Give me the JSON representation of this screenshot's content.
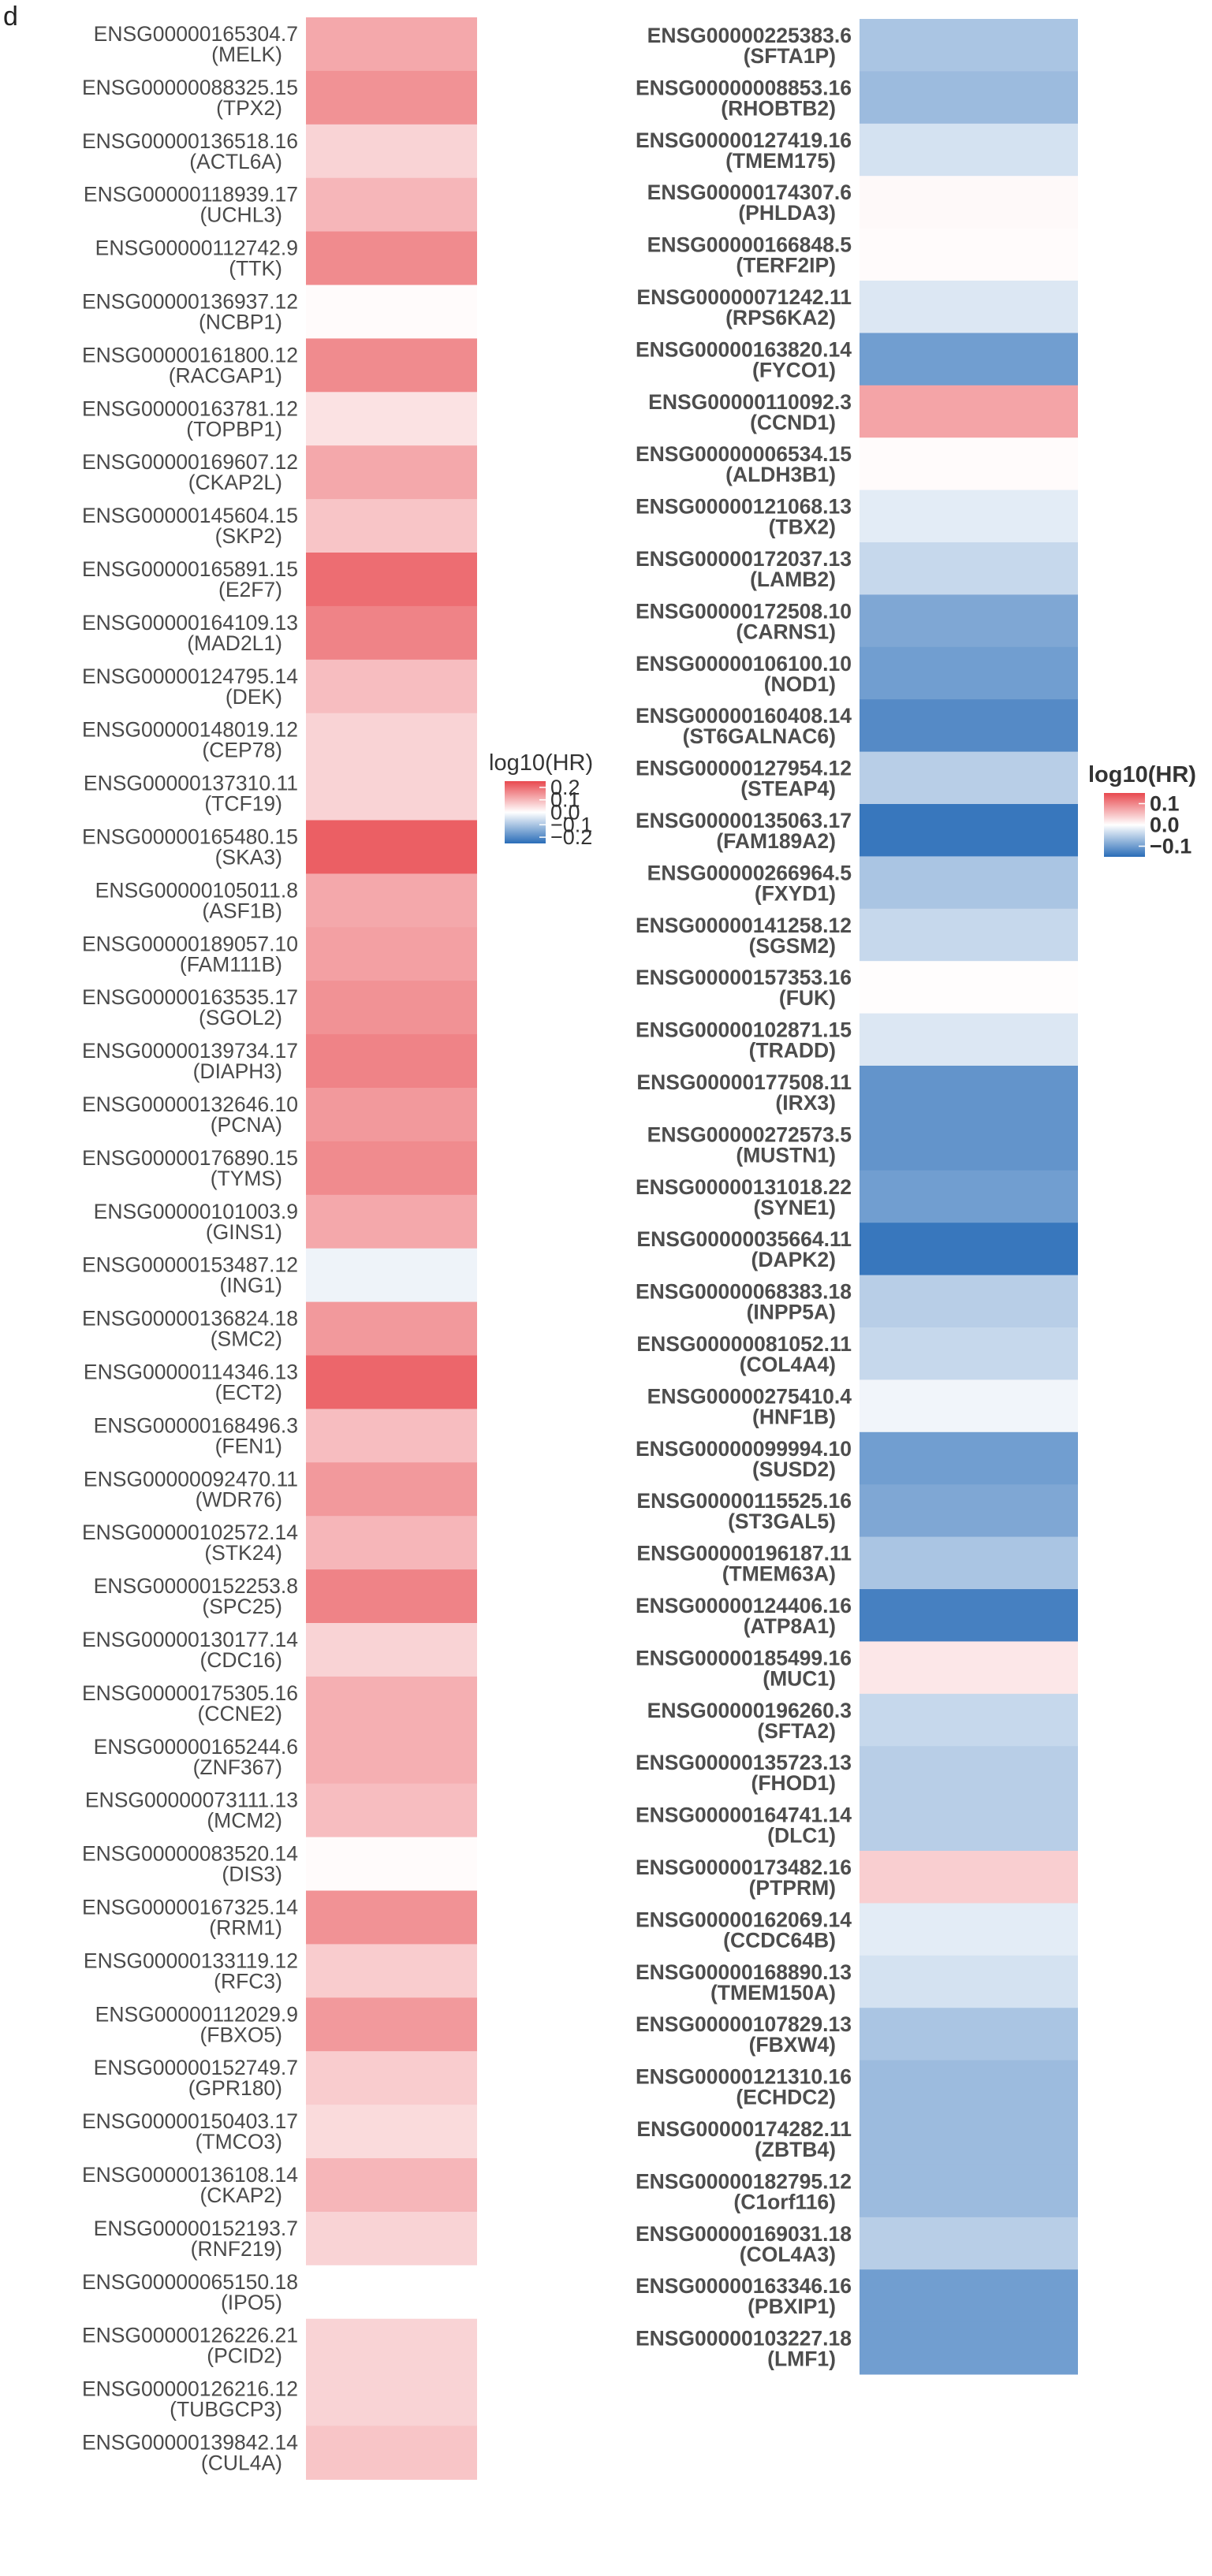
{
  "panel_label": "d",
  "chart_data": [
    {
      "type": "heatmap",
      "legend_title": "log10(HR)",
      "color_scale": {
        "low": "#2a6db8",
        "mid": "#ffffff",
        "high": "#e8494f",
        "range": [
          -0.25,
          0.25
        ]
      },
      "legend_ticks": [
        "0.2",
        "0.1",
        "0.0",
        "−0.1",
        "−0.2"
      ],
      "legend_tick_values": [
        0.2,
        0.1,
        0.0,
        -0.1,
        -0.2
      ],
      "legend_placement": "right",
      "rows": [
        {
          "id": "ENSG00000165304.7",
          "gene": "(MELK)",
          "value": 0.12
        },
        {
          "id": "ENSG00000088325.15",
          "gene": "(TPX2)",
          "value": 0.15
        },
        {
          "id": "ENSG00000136518.16",
          "gene": "(ACTL6A)",
          "value": 0.06
        },
        {
          "id": "ENSG00000118939.17",
          "gene": "(UCHL3)",
          "value": 0.1
        },
        {
          "id": "ENSG00000112742.9",
          "gene": "(TTK)",
          "value": 0.16
        },
        {
          "id": "ENSG00000136937.12",
          "gene": "(NCBP1)",
          "value": 0.005
        },
        {
          "id": "ENSG00000161800.12",
          "gene": "(RACGAP1)",
          "value": 0.16
        },
        {
          "id": "ENSG00000163781.12",
          "gene": "(TOPBP1)",
          "value": 0.04
        },
        {
          "id": "ENSG00000169607.12",
          "gene": "(CKAP2L)",
          "value": 0.12
        },
        {
          "id": "ENSG00000145604.15",
          "gene": "(SKP2)",
          "value": 0.08
        },
        {
          "id": "ENSG00000165891.15",
          "gene": "(E2F7)",
          "value": 0.2
        },
        {
          "id": "ENSG00000164109.13",
          "gene": "(MAD2L1)",
          "value": 0.17
        },
        {
          "id": "ENSG00000124795.14",
          "gene": "(DEK)",
          "value": 0.09
        },
        {
          "id": "ENSG00000148019.12",
          "gene": "(CEP78)",
          "value": 0.06
        },
        {
          "id": "ENSG00000137310.11",
          "gene": "(TCF19)",
          "value": 0.06
        },
        {
          "id": "ENSG00000165480.15",
          "gene": "(SKA3)",
          "value": 0.22
        },
        {
          "id": "ENSG00000105011.8",
          "gene": "(ASF1B)",
          "value": 0.12
        },
        {
          "id": "ENSG00000189057.10",
          "gene": "(FAM111B)",
          "value": 0.13
        },
        {
          "id": "ENSG00000163535.17",
          "gene": "(SGOL2)",
          "value": 0.15
        },
        {
          "id": "ENSG00000139734.17",
          "gene": "(DIAPH3)",
          "value": 0.17
        },
        {
          "id": "ENSG00000132646.10",
          "gene": "(PCNA)",
          "value": 0.14
        },
        {
          "id": "ENSG00000176890.15",
          "gene": "(TYMS)",
          "value": 0.16
        },
        {
          "id": "ENSG00000101003.9",
          "gene": "(GINS1)",
          "value": 0.12
        },
        {
          "id": "ENSG00000153487.12",
          "gene": "(ING1)",
          "value": -0.02
        },
        {
          "id": "ENSG00000136824.18",
          "gene": "(SMC2)",
          "value": 0.14
        },
        {
          "id": "ENSG00000114346.13",
          "gene": "(ECT2)",
          "value": 0.21
        },
        {
          "id": "ENSG00000168496.3",
          "gene": "(FEN1)",
          "value": 0.09
        },
        {
          "id": "ENSG00000092470.11",
          "gene": "(WDR76)",
          "value": 0.14
        },
        {
          "id": "ENSG00000102572.14",
          "gene": "(STK24)",
          "value": 0.1
        },
        {
          "id": "ENSG00000152253.8",
          "gene": "(SPC25)",
          "value": 0.17
        },
        {
          "id": "ENSG00000130177.14",
          "gene": "(CDC16)",
          "value": 0.06
        },
        {
          "id": "ENSG00000175305.16",
          "gene": "(CCNE2)",
          "value": 0.11
        },
        {
          "id": "ENSG00000165244.6",
          "gene": "(ZNF367)",
          "value": 0.11
        },
        {
          "id": "ENSG00000073111.13",
          "gene": "(MCM2)",
          "value": 0.09
        },
        {
          "id": "ENSG00000083520.14",
          "gene": "(DIS3)",
          "value": 0.005
        },
        {
          "id": "ENSG00000167325.14",
          "gene": "(RRM1)",
          "value": 0.15
        },
        {
          "id": "ENSG00000133119.12",
          "gene": "(RFC3)",
          "value": 0.07
        },
        {
          "id": "ENSG00000112029.9",
          "gene": "(FBXO5)",
          "value": 0.14
        },
        {
          "id": "ENSG00000152749.7",
          "gene": "(GPR180)",
          "value": 0.07
        },
        {
          "id": "ENSG00000150403.17",
          "gene": "(TMCO3)",
          "value": 0.05
        },
        {
          "id": "ENSG00000136108.14",
          "gene": "(CKAP2)",
          "value": 0.1
        },
        {
          "id": "ENSG00000152193.7",
          "gene": "(RNF219)",
          "value": 0.06
        },
        {
          "id": "ENSG00000065150.18",
          "gene": "(IPO5)",
          "value": 0.0
        },
        {
          "id": "ENSG00000126226.21",
          "gene": "(PCID2)",
          "value": 0.06
        },
        {
          "id": "ENSG00000126216.12",
          "gene": "(TUBGCP3)",
          "value": 0.06
        },
        {
          "id": "ENSG00000139842.14",
          "gene": "(CUL4A)",
          "value": 0.08
        }
      ]
    },
    {
      "type": "heatmap",
      "legend_title": "log10(HR)",
      "color_scale": {
        "low": "#2a6db8",
        "mid": "#ffffff",
        "high": "#e8494f",
        "range": [
          -0.15,
          0.15
        ]
      },
      "legend_ticks": [
        "0.1",
        "0.0",
        "−0.1"
      ],
      "legend_tick_values": [
        0.1,
        0.0,
        -0.1
      ],
      "legend_placement": "right",
      "rows": [
        {
          "id": "ENSG00000225383.6",
          "gene": "(SFTA1P)",
          "value": -0.06
        },
        {
          "id": "ENSG00000008853.16",
          "gene": "(RHOBTB2)",
          "value": -0.07
        },
        {
          "id": "ENSG00000127419.16",
          "gene": "(TMEM175)",
          "value": -0.03
        },
        {
          "id": "ENSG00000174307.6",
          "gene": "(PHLDA3)",
          "value": 0.005
        },
        {
          "id": "ENSG00000166848.5",
          "gene": "(TERF2IP)",
          "value": 0.003
        },
        {
          "id": "ENSG00000071242.11",
          "gene": "(RPS6KA2)",
          "value": -0.025
        },
        {
          "id": "ENSG00000163820.14",
          "gene": "(FYCO1)",
          "value": -0.1
        },
        {
          "id": "ENSG00000110092.3",
          "gene": "(CCND1)",
          "value": 0.075
        },
        {
          "id": "ENSG00000006534.15",
          "gene": "(ALDH3B1)",
          "value": 0.003
        },
        {
          "id": "ENSG00000121068.13",
          "gene": "(TBX2)",
          "value": -0.02
        },
        {
          "id": "ENSG00000172037.13",
          "gene": "(LAMB2)",
          "value": -0.04
        },
        {
          "id": "ENSG00000172508.10",
          "gene": "(CARNS1)",
          "value": -0.09
        },
        {
          "id": "ENSG00000106100.10",
          "gene": "(NOD1)",
          "value": -0.1
        },
        {
          "id": "ENSG00000160408.14",
          "gene": "(ST6GALNAC6)",
          "value": -0.12
        },
        {
          "id": "ENSG00000127954.12",
          "gene": "(STEAP4)",
          "value": -0.05
        },
        {
          "id": "ENSG00000135063.17",
          "gene": "(FAM189A2)",
          "value": -0.14
        },
        {
          "id": "ENSG00000266964.5",
          "gene": "(FXYD1)",
          "value": -0.06
        },
        {
          "id": "ENSG00000141258.12",
          "gene": "(SGSM2)",
          "value": -0.04
        },
        {
          "id": "ENSG00000157353.16",
          "gene": "(FUK)",
          "value": 0.002
        },
        {
          "id": "ENSG00000102871.15",
          "gene": "(TRADD)",
          "value": -0.025
        },
        {
          "id": "ENSG00000177508.11",
          "gene": "(IRX3)",
          "value": -0.11
        },
        {
          "id": "ENSG00000272573.5",
          "gene": "(MUSTN1)",
          "value": -0.11
        },
        {
          "id": "ENSG00000131018.22",
          "gene": "(SYNE1)",
          "value": -0.1
        },
        {
          "id": "ENSG00000035664.11",
          "gene": "(DAPK2)",
          "value": -0.14
        },
        {
          "id": "ENSG00000068383.18",
          "gene": "(INPP5A)",
          "value": -0.05
        },
        {
          "id": "ENSG00000081052.11",
          "gene": "(COL4A4)",
          "value": -0.04
        },
        {
          "id": "ENSG00000275410.4",
          "gene": "(HNF1B)",
          "value": -0.01
        },
        {
          "id": "ENSG00000099994.10",
          "gene": "(SUSD2)",
          "value": -0.1
        },
        {
          "id": "ENSG00000115525.16",
          "gene": "(ST3GAL5)",
          "value": -0.09
        },
        {
          "id": "ENSG00000196187.11",
          "gene": "(TMEM63A)",
          "value": -0.06
        },
        {
          "id": "ENSG00000124406.16",
          "gene": "(ATP8A1)",
          "value": -0.13
        },
        {
          "id": "ENSG00000185499.16",
          "gene": "(MUC1)",
          "value": 0.02
        },
        {
          "id": "ENSG00000196260.3",
          "gene": "(SFTA2)",
          "value": -0.04
        },
        {
          "id": "ENSG00000135723.13",
          "gene": "(FHOD1)",
          "value": -0.05
        },
        {
          "id": "ENSG00000164741.14",
          "gene": "(DLC1)",
          "value": -0.05
        },
        {
          "id": "ENSG00000173482.16",
          "gene": "(PTPRM)",
          "value": 0.04
        },
        {
          "id": "ENSG00000162069.14",
          "gene": "(CCDC64B)",
          "value": -0.02
        },
        {
          "id": "ENSG00000168890.13",
          "gene": "(TMEM150A)",
          "value": -0.03
        },
        {
          "id": "ENSG00000107829.13",
          "gene": "(FBXW4)",
          "value": -0.06
        },
        {
          "id": "ENSG00000121310.16",
          "gene": "(ECHDC2)",
          "value": -0.07
        },
        {
          "id": "ENSG00000174282.11",
          "gene": "(ZBTB4)",
          "value": -0.07
        },
        {
          "id": "ENSG00000182795.12",
          "gene": "(C1orf116)",
          "value": -0.07
        },
        {
          "id": "ENSG00000169031.18",
          "gene": "(COL4A3)",
          "value": -0.05
        },
        {
          "id": "ENSG00000163346.16",
          "gene": "(PBXIP1)",
          "value": -0.1
        },
        {
          "id": "ENSG00000103227.18",
          "gene": "(LMF1)",
          "value": -0.1
        }
      ]
    }
  ]
}
